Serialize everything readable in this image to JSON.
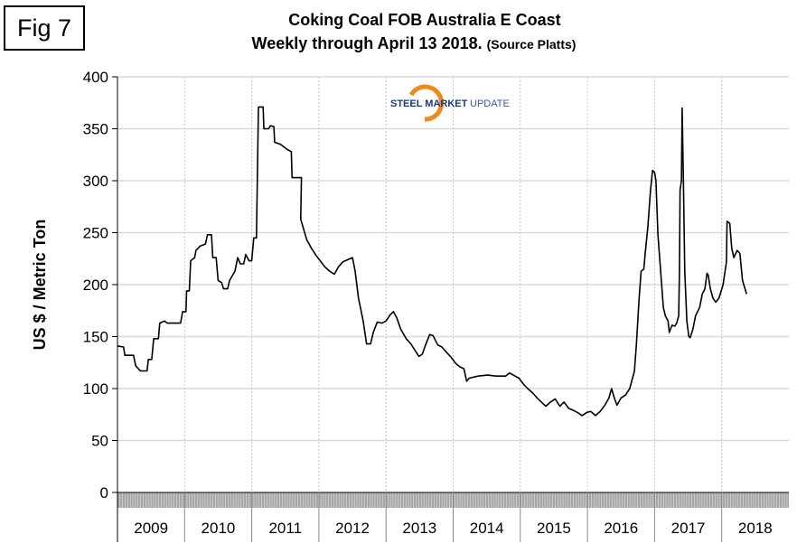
{
  "fig_label": "Fig 7",
  "logo": {
    "text_bold": "STEEL MARKET",
    "text_light": "UPDATE"
  },
  "chart_data": {
    "type": "line",
    "title_line1": "Coking Coal FOB Australia E Coast",
    "title_line2": "Weekly through April 13 2018.",
    "title_source": "(Source Platts)",
    "ylabel": "US $ / Metric Ton",
    "xlabel": "",
    "ylim": [
      0,
      400
    ],
    "yticks": [
      0,
      50,
      100,
      150,
      200,
      250,
      300,
      350,
      400
    ],
    "xlim": [
      2009,
      2019
    ],
    "xtick_labels": [
      "2009",
      "2010",
      "2011",
      "2012",
      "2013",
      "2014",
      "2015",
      "2016",
      "2017",
      "2018"
    ],
    "grid": "horizontal solid, vertical dotted",
    "legend": "none",
    "colors": {
      "line": "#000000",
      "grid": "#d9d9d9",
      "band": "#a6a6a6"
    },
    "series": [
      {
        "name": "Coking Coal FOB Australia E Coast",
        "points": [
          [
            2009.0,
            141
          ],
          [
            2009.09,
            140
          ],
          [
            2009.11,
            132
          ],
          [
            2009.24,
            132
          ],
          [
            2009.27,
            122
          ],
          [
            2009.34,
            117
          ],
          [
            2009.44,
            117
          ],
          [
            2009.46,
            128
          ],
          [
            2009.51,
            128
          ],
          [
            2009.54,
            148
          ],
          [
            2009.61,
            148
          ],
          [
            2009.63,
            163
          ],
          [
            2009.7,
            165
          ],
          [
            2009.74,
            163
          ],
          [
            2009.94,
            163
          ],
          [
            2009.97,
            174
          ],
          [
            2010.02,
            174
          ],
          [
            2010.03,
            194
          ],
          [
            2010.07,
            194
          ],
          [
            2010.09,
            223
          ],
          [
            2010.15,
            226
          ],
          [
            2010.17,
            233
          ],
          [
            2010.23,
            237
          ],
          [
            2010.31,
            239
          ],
          [
            2010.34,
            248
          ],
          [
            2010.4,
            248
          ],
          [
            2010.42,
            226
          ],
          [
            2010.47,
            226
          ],
          [
            2010.5,
            204
          ],
          [
            2010.55,
            202
          ],
          [
            2010.58,
            196
          ],
          [
            2010.64,
            196
          ],
          [
            2010.67,
            204
          ],
          [
            2010.75,
            213
          ],
          [
            2010.79,
            226
          ],
          [
            2010.83,
            220
          ],
          [
            2010.88,
            220
          ],
          [
            2010.91,
            229
          ],
          [
            2010.96,
            223
          ],
          [
            2011.0,
            223
          ],
          [
            2011.03,
            245
          ],
          [
            2011.07,
            245
          ],
          [
            2011.1,
            371
          ],
          [
            2011.17,
            371
          ],
          [
            2011.18,
            350
          ],
          [
            2011.25,
            350
          ],
          [
            2011.28,
            353
          ],
          [
            2011.33,
            352
          ],
          [
            2011.34,
            337
          ],
          [
            2011.43,
            335
          ],
          [
            2011.53,
            330
          ],
          [
            2011.59,
            328
          ],
          [
            2011.6,
            303
          ],
          [
            2011.74,
            303
          ],
          [
            2011.73,
            263
          ],
          [
            2011.82,
            243
          ],
          [
            2011.89,
            235
          ],
          [
            2011.96,
            228
          ],
          [
            2012.09,
            217
          ],
          [
            2012.16,
            213
          ],
          [
            2012.23,
            210
          ],
          [
            2012.29,
            217
          ],
          [
            2012.36,
            222
          ],
          [
            2012.43,
            224
          ],
          [
            2012.5,
            226
          ],
          [
            2012.54,
            213
          ],
          [
            2012.59,
            187
          ],
          [
            2012.66,
            165
          ],
          [
            2012.71,
            143
          ],
          [
            2012.77,
            143
          ],
          [
            2012.81,
            154
          ],
          [
            2012.87,
            164
          ],
          [
            2012.94,
            163
          ],
          [
            2013.0,
            165
          ],
          [
            2013.06,
            171
          ],
          [
            2013.11,
            174
          ],
          [
            2013.16,
            168
          ],
          [
            2013.22,
            157
          ],
          [
            2013.3,
            148
          ],
          [
            2013.37,
            143
          ],
          [
            2013.43,
            137
          ],
          [
            2013.49,
            131
          ],
          [
            2013.54,
            133
          ],
          [
            2013.59,
            142
          ],
          [
            2013.65,
            152
          ],
          [
            2013.7,
            151
          ],
          [
            2013.77,
            142
          ],
          [
            2013.83,
            140
          ],
          [
            2013.9,
            135
          ],
          [
            2013.97,
            130
          ],
          [
            2014.04,
            124
          ],
          [
            2014.1,
            121
          ],
          [
            2014.16,
            119
          ],
          [
            2014.2,
            107
          ],
          [
            2014.24,
            110
          ],
          [
            2014.37,
            112
          ],
          [
            2014.51,
            113
          ],
          [
            2014.64,
            112
          ],
          [
            2014.78,
            112
          ],
          [
            2014.84,
            115
          ],
          [
            2014.98,
            110
          ],
          [
            2015.05,
            104
          ],
          [
            2015.11,
            100
          ],
          [
            2015.18,
            96
          ],
          [
            2015.25,
            91
          ],
          [
            2015.38,
            83
          ],
          [
            2015.45,
            87
          ],
          [
            2015.52,
            90
          ],
          [
            2015.59,
            83
          ],
          [
            2015.65,
            87
          ],
          [
            2015.72,
            81
          ],
          [
            2015.79,
            79
          ],
          [
            2015.85,
            77
          ],
          [
            2015.92,
            74
          ],
          [
            2015.99,
            77
          ],
          [
            2016.05,
            78
          ],
          [
            2016.12,
            74
          ],
          [
            2016.19,
            78
          ],
          [
            2016.26,
            84
          ],
          [
            2016.32,
            91
          ],
          [
            2016.36,
            100
          ],
          [
            2016.4,
            91
          ],
          [
            2016.44,
            84
          ],
          [
            2016.5,
            91
          ],
          [
            2016.57,
            94
          ],
          [
            2016.63,
            100
          ],
          [
            2016.7,
            117
          ],
          [
            2016.73,
            143
          ],
          [
            2016.77,
            187
          ],
          [
            2016.8,
            213
          ],
          [
            2016.84,
            215
          ],
          [
            2016.86,
            230
          ],
          [
            2016.9,
            256
          ],
          [
            2016.94,
            291
          ],
          [
            2016.97,
            310
          ],
          [
            2017.0,
            308
          ],
          [
            2017.02,
            300
          ],
          [
            2017.05,
            248
          ],
          [
            2017.09,
            213
          ],
          [
            2017.13,
            178
          ],
          [
            2017.16,
            170
          ],
          [
            2017.2,
            165
          ],
          [
            2017.22,
            154
          ],
          [
            2017.26,
            161
          ],
          [
            2017.3,
            160
          ],
          [
            2017.33,
            163
          ],
          [
            2017.36,
            170
          ],
          [
            2017.37,
            213
          ],
          [
            2017.38,
            291
          ],
          [
            2017.4,
            300
          ],
          [
            2017.41,
            370
          ],
          [
            2017.43,
            300
          ],
          [
            2017.45,
            213
          ],
          [
            2017.48,
            165
          ],
          [
            2017.51,
            150
          ],
          [
            2017.53,
            149
          ],
          [
            2017.57,
            157
          ],
          [
            2017.61,
            170
          ],
          [
            2017.67,
            178
          ],
          [
            2017.71,
            191
          ],
          [
            2017.75,
            196
          ],
          [
            2017.78,
            211
          ],
          [
            2017.8,
            209
          ],
          [
            2017.83,
            196
          ],
          [
            2017.87,
            187
          ],
          [
            2017.91,
            183
          ],
          [
            2017.96,
            187
          ],
          [
            2018.02,
            200
          ],
          [
            2018.07,
            222
          ],
          [
            2018.08,
            261
          ],
          [
            2018.12,
            259
          ],
          [
            2018.15,
            235
          ],
          [
            2018.18,
            226
          ],
          [
            2018.23,
            233
          ],
          [
            2018.27,
            230
          ],
          [
            2018.31,
            204
          ],
          [
            2018.37,
            191
          ]
        ]
      }
    ]
  }
}
